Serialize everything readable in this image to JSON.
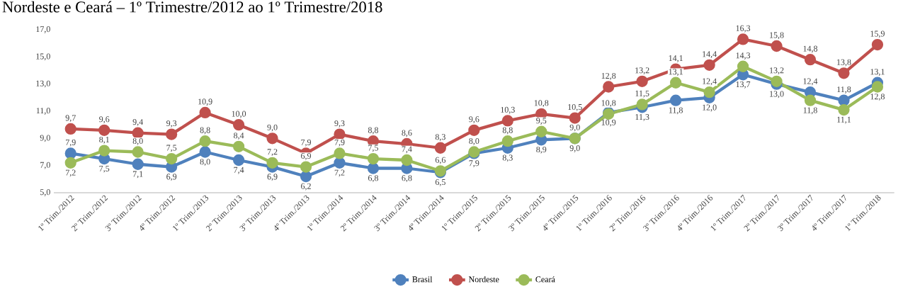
{
  "chart_data": {
    "type": "line",
    "title": "Nordeste e Ceará – 1º Trimestre/2012 ao 1º Trimestre/2018",
    "categories": [
      "1º Trim./2012",
      "2º Trim./2012",
      "3º Trim./2012",
      "4º Trim./2012",
      "1º Trim./2013",
      "2º Trim./2013",
      "3º Trim./2013",
      "4º Trim./2013",
      "1º Trim./2014",
      "2º Trim./2014",
      "3º Trim./2014",
      "4º Trim./2014",
      "1º Trim./2015",
      "2º Trim./2015",
      "3º Trim./2015",
      "4º Trim./2015",
      "1º Trim./2016",
      "2º Trim./2016",
      "3º Trim./2016",
      "4º Trim./2016",
      "1º Trim./2017",
      "2º Trim./2017",
      "3º Trim./2017",
      "4º Trim./2017",
      "1º Trim./2018"
    ],
    "series": [
      {
        "name": "Brasil",
        "color": "#4f81bd",
        "values": [
          7.9,
          7.5,
          7.1,
          6.9,
          8.0,
          7.4,
          6.9,
          6.2,
          7.2,
          6.8,
          6.8,
          6.5,
          7.9,
          8.3,
          8.9,
          9.0,
          10.9,
          11.3,
          11.8,
          12.0,
          13.7,
          13.0,
          12.4,
          11.8,
          13.1
        ],
        "value_labels": [
          "7,9",
          "7,5",
          "7,1",
          "6,9",
          "8,0",
          "7,4",
          "6,9",
          "6,2",
          "7,2",
          "6,8",
          "6,8",
          "6,5",
          "7,9",
          "8,3",
          "8,9",
          "9,0",
          "10,9",
          "11,3",
          "11,8",
          "12,0",
          "13,7",
          "13,0",
          "12,4",
          "11,8",
          "13,1"
        ]
      },
      {
        "name": "Nordeste",
        "color": "#c0504d",
        "values": [
          9.7,
          9.6,
          9.4,
          9.3,
          10.9,
          10.0,
          9.0,
          7.9,
          9.3,
          8.8,
          8.6,
          8.3,
          9.6,
          10.3,
          10.8,
          10.5,
          12.8,
          13.2,
          14.1,
          14.4,
          16.3,
          15.8,
          14.8,
          13.8,
          15.9
        ],
        "value_labels": [
          "9,7",
          "9,6",
          "9,4",
          "9,3",
          "10,9",
          "10,0",
          "9,0",
          "7,9",
          "9,3",
          "8,8",
          "8,6",
          "8,3",
          "9,6",
          "10,3",
          "10,8",
          "10,5",
          "12,8",
          "13,2",
          "14,1",
          "14,4",
          "16,3",
          "15,8",
          "14,8",
          "13,8",
          "15,9"
        ]
      },
      {
        "name": "Ceará",
        "color": "#9bbb59",
        "values": [
          7.2,
          8.1,
          8.0,
          7.5,
          8.8,
          8.4,
          7.2,
          6.9,
          7.9,
          7.5,
          7.4,
          6.6,
          8.0,
          8.8,
          9.5,
          9.0,
          10.8,
          11.5,
          13.1,
          12.4,
          14.3,
          13.2,
          11.8,
          11.1,
          12.8
        ],
        "value_labels": [
          "7,2",
          "8,1",
          "8,0",
          "7,5",
          "8,8",
          "8,4",
          "7,2",
          "6,9",
          "7,9",
          "7,5",
          "7,4",
          "6,6",
          "8,0",
          "8,8",
          "9,5",
          "9,0",
          "10,8",
          "11,5",
          "13,1",
          "12,4",
          "14,3",
          "13,2",
          "11,8",
          "11,1",
          "12,8"
        ]
      }
    ],
    "ylim": [
      5,
      17
    ],
    "yticks": [
      {
        "value": 5,
        "label": "5,0"
      },
      {
        "value": 7,
        "label": "7,0"
      },
      {
        "value": 9,
        "label": "9,0"
      },
      {
        "value": 11,
        "label": "11,0"
      },
      {
        "value": 13,
        "label": "13,0"
      },
      {
        "value": 15,
        "label": "15,0"
      },
      {
        "value": 17,
        "label": "17,0"
      }
    ],
    "legend": "bottom",
    "marker": "circle",
    "line_style": "solid",
    "grid": false
  }
}
